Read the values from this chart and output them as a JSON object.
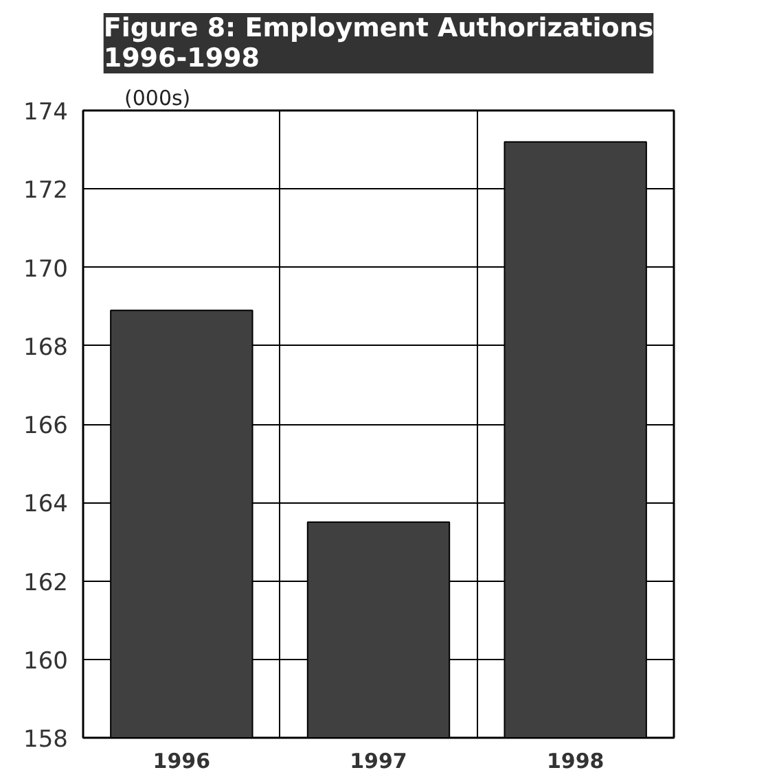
{
  "chart_data": {
    "type": "bar",
    "title": "Figure 8: Employment Authorizations\n1996-1998",
    "ylabel": "(000s)",
    "categories": [
      "1996",
      "1997",
      "1998"
    ],
    "values": [
      168.9,
      163.5,
      173.2
    ],
    "color": "#404040",
    "ylim": [
      158,
      174
    ],
    "yticks": [
      158,
      160,
      162,
      164,
      166,
      168,
      170,
      172,
      174
    ],
    "grid": true
  }
}
